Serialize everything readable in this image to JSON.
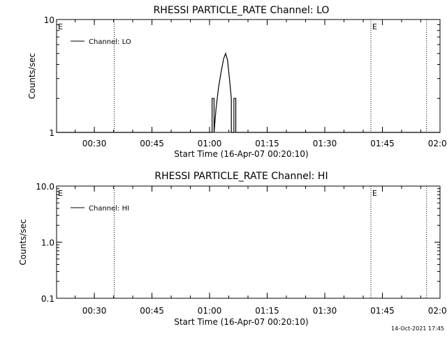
{
  "footer": {
    "timestamp": "14-Oct-2021 17:45"
  },
  "chart_data": [
    {
      "type": "line",
      "title": "RHESSI PARTICLE_RATE Channel: LO",
      "xlabel": "Start Time (16-Apr-07 00:20:10)",
      "ylabel": "Counts/sec",
      "yscale": "log",
      "ylim": [
        1,
        10
      ],
      "ytick_values": [
        1,
        10
      ],
      "ytick_labels": [
        "1",
        "10"
      ],
      "xlim": [
        "00:20:10",
        "02:00:00"
      ],
      "xtick_values": [
        "00:30",
        "00:45",
        "01:00",
        "01:15",
        "01:30",
        "01:45",
        "02:00"
      ],
      "xtick_labels": [
        "00:30",
        "00:45",
        "01:00",
        "01:15",
        "01:30",
        "01:45",
        "02:00"
      ],
      "event_lines": [
        "00:35:10",
        "01:42:00",
        "01:56:30"
      ],
      "event_markers": [
        {
          "label": "E",
          "x": "00:20:10"
        },
        {
          "label": "E",
          "x": "01:42:00"
        }
      ],
      "legend": {
        "position": "top-left",
        "entries": [
          "Channel: LO"
        ]
      },
      "grid": false,
      "series": [
        {
          "name": "Channel: LO",
          "x": [
            "00:20:10",
            "01:00:00",
            "01:00:40",
            "01:00:40",
            "01:01:10",
            "01:01:10",
            "01:01:40",
            "01:02:20",
            "01:03:00",
            "01:03:40",
            "01:04:10",
            "01:04:40",
            "01:05:10",
            "01:05:40",
            "01:05:40",
            "01:06:20",
            "01:06:20",
            "01:06:50",
            "01:06:50",
            "01:07:20",
            "01:07:20",
            "02:00:00"
          ],
          "y": [
            1,
            1,
            1,
            2,
            2,
            1,
            1.6,
            2.5,
            3.4,
            4.5,
            5.0,
            4.4,
            3.0,
            2.0,
            1,
            1,
            2,
            2,
            1,
            1,
            1,
            1
          ]
        }
      ]
    },
    {
      "type": "line",
      "title": "RHESSI PARTICLE_RATE Channel: HI",
      "xlabel": "Start Time (16-Apr-07 00:20:10)",
      "ylabel": "Counts/sec",
      "yscale": "log",
      "ylim": [
        0.1,
        10
      ],
      "ytick_values": [
        0.1,
        1,
        10
      ],
      "ytick_labels": [
        "0.1",
        "1.0",
        "10.0"
      ],
      "xlim": [
        "00:20:10",
        "02:00:00"
      ],
      "xtick_values": [
        "00:30",
        "00:45",
        "01:00",
        "01:15",
        "01:30",
        "01:45",
        "02:00"
      ],
      "xtick_labels": [
        "00:30",
        "00:45",
        "01:00",
        "01:15",
        "01:30",
        "01:45",
        "02:00"
      ],
      "event_lines": [
        "00:35:10",
        "01:42:00",
        "01:56:30"
      ],
      "event_markers": [
        {
          "label": "E",
          "x": "00:20:10"
        },
        {
          "label": "E",
          "x": "01:42:00"
        }
      ],
      "legend": {
        "position": "top-left",
        "entries": [
          "Channel: HI"
        ]
      },
      "grid": false,
      "series": [
        {
          "name": "Channel: HI",
          "x": [],
          "y": []
        }
      ]
    }
  ]
}
